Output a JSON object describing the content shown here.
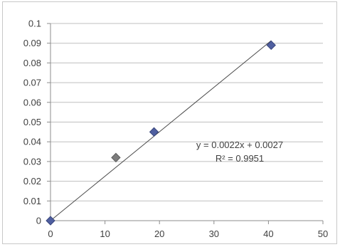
{
  "chart_data": {
    "type": "scatter",
    "title": "",
    "xlabel": "",
    "ylabel": "",
    "xlim": [
      0,
      50
    ],
    "ylim": [
      0,
      0.1
    ],
    "x_ticks": [
      "0",
      "10",
      "20",
      "30",
      "40",
      "50"
    ],
    "y_ticks": [
      "0",
      "0.01",
      "0.02",
      "0.03",
      "0.04",
      "0.05",
      "0.06",
      "0.07",
      "0.08",
      "0.09",
      "0.1"
    ],
    "grid": "horizontal",
    "legend": "none",
    "series": [
      {
        "points": [
          {
            "x": 0,
            "y": 0
          },
          {
            "x": 12,
            "y": 0.032
          },
          {
            "x": 19,
            "y": 0.045
          },
          {
            "x": 40.5,
            "y": 0.089
          }
        ]
      }
    ],
    "trendline": {
      "slope": 0.0022,
      "intercept": 0.0027,
      "equation": "y = 0.0022x + 0.0027",
      "r_squared": "R² = 0.9951"
    },
    "colors": {
      "marker": "#4f5fa0",
      "marker_alt": "#7d7d7d",
      "trendline": "#4a4a4a",
      "grid": "#bfbfbf"
    }
  }
}
